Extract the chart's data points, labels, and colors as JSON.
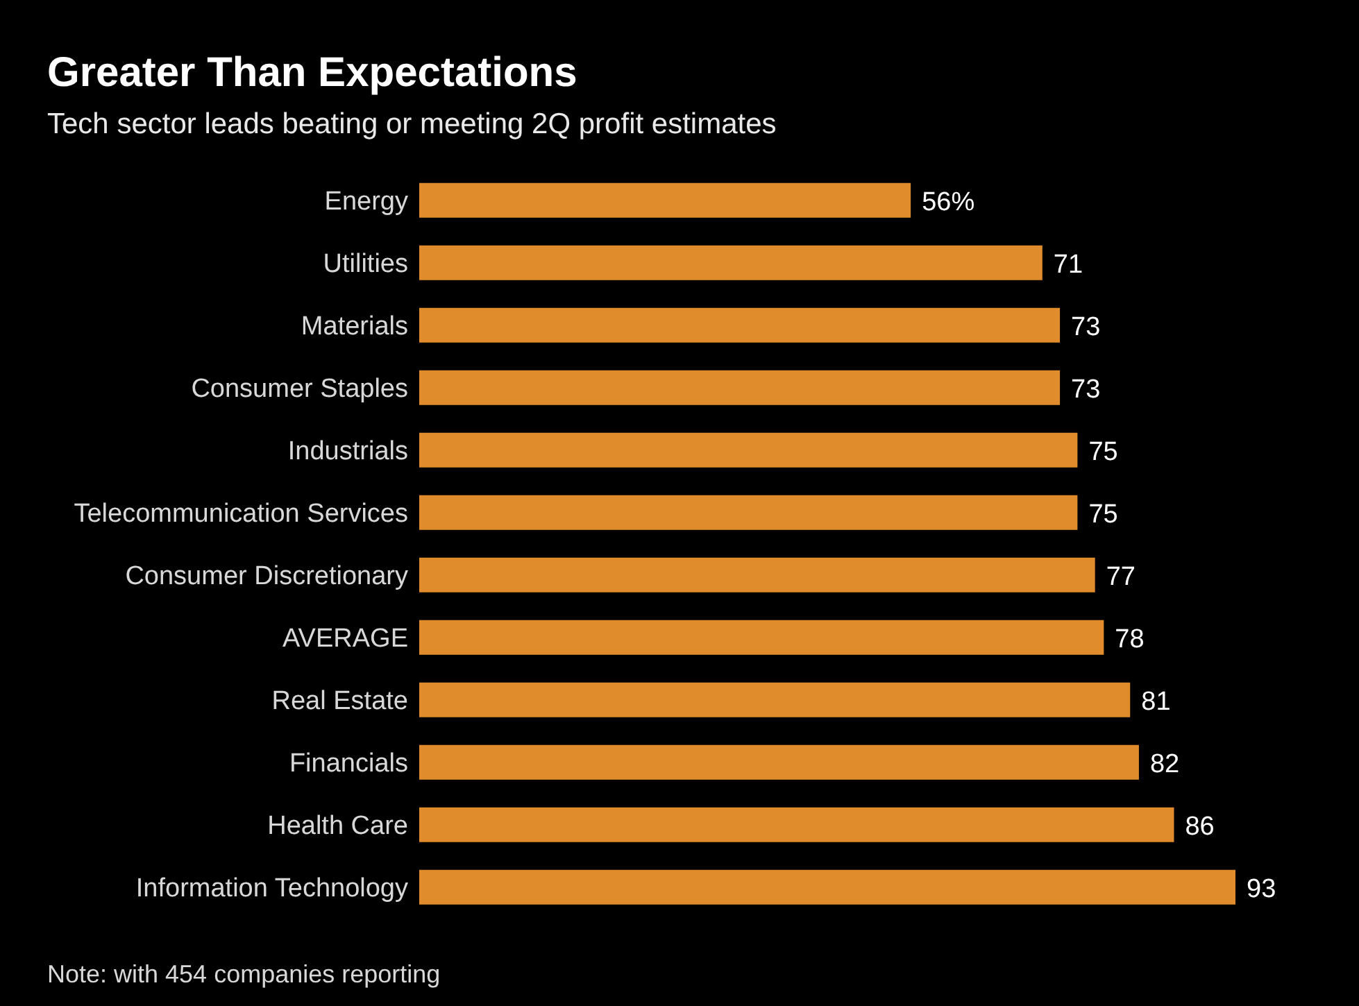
{
  "chart_data": {
    "type": "bar",
    "orientation": "horizontal",
    "title": "Greater Than Expectations",
    "subtitle": "Tech sector leads beating or meeting 2Q profit estimates",
    "categories": [
      "Energy",
      "Utilities",
      "Materials",
      "Consumer Staples",
      "Industrials",
      "Telecommunication Services",
      "Consumer Discretionary",
      "AVERAGE",
      "Real Estate",
      "Financials",
      "Health Care",
      "Information Technology"
    ],
    "values": [
      56,
      71,
      73,
      73,
      75,
      75,
      77,
      78,
      81,
      82,
      86,
      93
    ],
    "value_labels": [
      "56%",
      "71",
      "73",
      "73",
      "75",
      "75",
      "77",
      "78",
      "81",
      "82",
      "86",
      "93"
    ],
    "color": "#e08c2c",
    "grid": false,
    "legend": false,
    "annotations": [
      "Note: with 454 companies reporting"
    ]
  }
}
